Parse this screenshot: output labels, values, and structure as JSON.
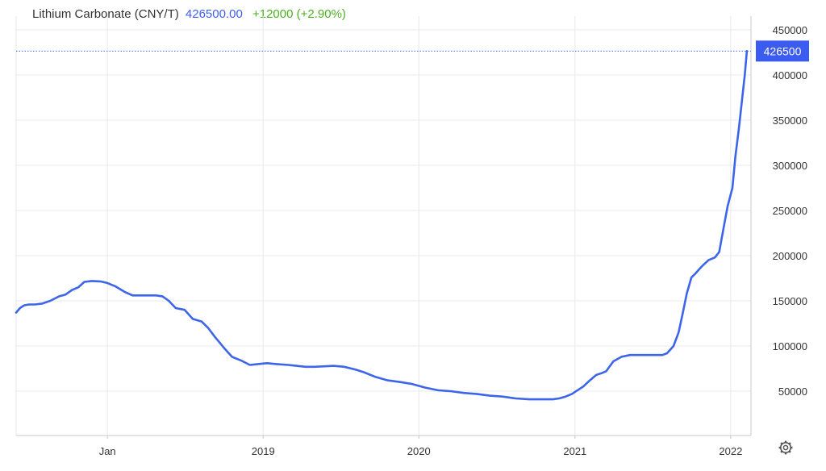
{
  "header": {
    "title": "Lithium Carbonate (CNY/T)",
    "price": "426500.00",
    "change": "+12000 (+2.90%)"
  },
  "last_value_label": "426500",
  "icons": {
    "settings": "gear-icon"
  },
  "colors": {
    "line": "#3d65ea",
    "price_text": "#3d5ff0",
    "change_text": "#4caf24",
    "label_bg": "#3c5bf0",
    "grid": "#e8e8e8",
    "axis": "#c8c8c8"
  },
  "chart_data": {
    "type": "line",
    "title": "Lithium Carbonate (CNY/T)",
    "x_ticks": [
      {
        "label": "Jan",
        "x": "2018-01-01"
      },
      {
        "label": "2019",
        "x": "2019-01-01"
      },
      {
        "label": "2020",
        "x": "2020-01-01"
      },
      {
        "label": "2021",
        "x": "2021-01-01"
      },
      {
        "label": "2022",
        "x": "2022-01-01"
      }
    ],
    "y_ticks": [
      50000,
      100000,
      150000,
      200000,
      250000,
      300000,
      350000,
      400000,
      450000
    ],
    "ylim": [
      0,
      460000
    ],
    "xlim": [
      "2017-06-01",
      "2022-02-10"
    ],
    "grid": true,
    "y_axis_side": "right",
    "series": [
      {
        "x": [
          "2017-06-01",
          "2017-06-10",
          "2017-06-20",
          "2017-07-01",
          "2017-07-15",
          "2017-08-01",
          "2017-08-20",
          "2017-09-10",
          "2017-09-25",
          "2017-10-10",
          "2017-10-25",
          "2017-11-08",
          "2017-11-25",
          "2017-12-15",
          "2017-12-30",
          "2018-01-20",
          "2018-02-10",
          "2018-03-01",
          "2018-03-20",
          "2018-04-10",
          "2018-04-25",
          "2018-05-10",
          "2018-05-25",
          "2018-06-10",
          "2018-07-01",
          "2018-07-20",
          "2018-08-10",
          "2018-08-25",
          "2018-09-10",
          "2018-10-01",
          "2018-10-20",
          "2018-11-10",
          "2018-12-01",
          "2018-12-20",
          "2019-01-10",
          "2019-02-01",
          "2019-03-01",
          "2019-03-20",
          "2019-04-10",
          "2019-05-01",
          "2019-05-25",
          "2019-06-15",
          "2019-07-10",
          "2019-08-05",
          "2019-08-25",
          "2019-09-20",
          "2019-10-20",
          "2019-11-20",
          "2019-12-15",
          "2020-01-15",
          "2020-02-15",
          "2020-03-15",
          "2020-04-15",
          "2020-05-15",
          "2020-06-15",
          "2020-07-15",
          "2020-08-15",
          "2020-09-15",
          "2020-10-15",
          "2020-11-10",
          "2020-11-25",
          "2020-12-10",
          "2020-12-25",
          "2021-01-10",
          "2021-01-20",
          "2021-02-05",
          "2021-02-20",
          "2021-03-05",
          "2021-03-15",
          "2021-04-01",
          "2021-04-20",
          "2021-05-10",
          "2021-06-10",
          "2021-07-10",
          "2021-07-25",
          "2021-08-05",
          "2021-08-20",
          "2021-09-01",
          "2021-09-10",
          "2021-09-20",
          "2021-10-01",
          "2021-10-10",
          "2021-10-25",
          "2021-11-10",
          "2021-11-25",
          "2021-12-05",
          "2021-12-15",
          "2021-12-25",
          "2022-01-05",
          "2022-01-12",
          "2022-01-20",
          "2022-01-27",
          "2022-02-03",
          "2022-02-08"
        ],
        "y": [
          137000,
          142000,
          145000,
          146000,
          146000,
          147000,
          150000,
          155000,
          157000,
          162000,
          165000,
          171000,
          172000,
          171500,
          170000,
          166000,
          160000,
          156000,
          156000,
          156000,
          156000,
          155000,
          150000,
          142000,
          140000,
          130000,
          127000,
          120000,
          110000,
          98000,
          88000,
          84000,
          79000,
          80000,
          81000,
          80000,
          79000,
          78000,
          77000,
          77000,
          77500,
          78000,
          77000,
          74000,
          71000,
          66000,
          62000,
          60000,
          58000,
          54000,
          51000,
          50000,
          48000,
          47000,
          45000,
          44000,
          42000,
          41000,
          41000,
          41000,
          42000,
          44000,
          47000,
          52000,
          55000,
          62000,
          68000,
          70000,
          72000,
          83000,
          88000,
          90000,
          90000,
          90000,
          90000,
          92000,
          100000,
          115000,
          135000,
          158000,
          176000,
          180000,
          188000,
          195000,
          198000,
          204000,
          230000,
          255000,
          275000,
          310000,
          340000,
          370000,
          400000,
          426500
        ]
      }
    ]
  }
}
